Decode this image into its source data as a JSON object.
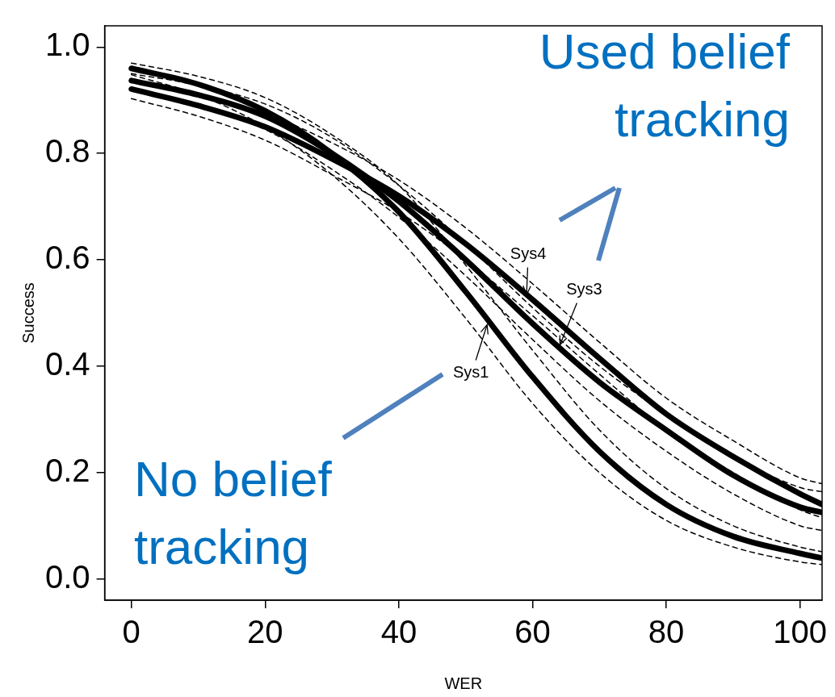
{
  "chart_data": {
    "type": "line",
    "xlabel": "WER",
    "ylabel": "Success",
    "x": [
      0,
      10,
      20,
      30,
      40,
      50,
      60,
      70,
      80,
      90,
      100,
      103.3
    ],
    "series": [
      {
        "color": "#000000",
        "values": [
          0.96,
          0.93,
          0.88,
          0.8,
          0.69,
          0.54,
          0.38,
          0.24,
          0.14,
          0.08,
          0.048,
          0.039
        ]
      },
      {
        "color": "#000000",
        "line_style": "dashed",
        "values": [
          0.948,
          0.91,
          0.85,
          0.76,
          0.64,
          0.49,
          0.33,
          0.2,
          0.11,
          0.06,
          0.032,
          0.027
        ]
      },
      {
        "color": "#000000",
        "line_style": "dashed",
        "values": [
          0.97,
          0.945,
          0.905,
          0.835,
          0.74,
          0.59,
          0.43,
          0.28,
          0.17,
          0.1,
          0.06,
          0.051
        ]
      },
      {
        "color": "#000000",
        "values": [
          0.937,
          0.91,
          0.87,
          0.8,
          0.71,
          0.6,
          0.48,
          0.37,
          0.28,
          0.195,
          0.135,
          0.125
        ]
      },
      {
        "color": "#000000",
        "line_style": "dashed",
        "values": [
          0.922,
          0.89,
          0.845,
          0.77,
          0.68,
          0.57,
          0.45,
          0.335,
          0.24,
          0.16,
          0.1,
          0.091
        ]
      },
      {
        "color": "#000000",
        "line_style": "dashed",
        "values": [
          0.95,
          0.928,
          0.893,
          0.83,
          0.74,
          0.63,
          0.51,
          0.4,
          0.31,
          0.23,
          0.172,
          0.164
        ]
      },
      {
        "color": "#000000",
        "values": [
          0.921,
          0.89,
          0.85,
          0.79,
          0.72,
          0.63,
          0.525,
          0.415,
          0.31,
          0.23,
          0.16,
          0.14
        ]
      },
      {
        "color": "#000000",
        "line_style": "dashed",
        "values": [
          0.903,
          0.87,
          0.825,
          0.76,
          0.69,
          0.6,
          0.495,
          0.385,
          0.28,
          0.2,
          0.13,
          0.115
        ]
      },
      {
        "color": "#000000",
        "line_style": "dashed",
        "values": [
          0.935,
          0.91,
          0.875,
          0.82,
          0.75,
          0.66,
          0.555,
          0.445,
          0.34,
          0.26,
          0.19,
          0.179
        ]
      }
    ],
    "xlim": [
      -4,
      103.3
    ],
    "ylim": [
      -0.04,
      1.04
    ],
    "xticks": [
      0,
      20,
      40,
      60,
      80,
      100
    ],
    "yticks": [
      {
        "value": 0,
        "label": "0.0"
      },
      {
        "value": 0.2,
        "label": "0.2"
      },
      {
        "value": 0.4,
        "label": "0.4"
      },
      {
        "value": 0.6,
        "label": "0.6"
      },
      {
        "value": 0.8,
        "label": "0.8"
      },
      {
        "value": 1,
        "label": "1.0"
      }
    ],
    "annotations": [
      {
        "text": "Sys4",
        "x": 59.1,
        "y": 0.534
      },
      {
        "text": "Sys3",
        "x": 64.1,
        "y": 0.44
      },
      {
        "text": "Sys1",
        "x": 53.2,
        "y": 0.478
      },
      "Used belief tracking",
      "No belief tracking"
    ],
    "grid": false,
    "legend": false,
    "marker": "none",
    "line_style": "solid"
  }
}
